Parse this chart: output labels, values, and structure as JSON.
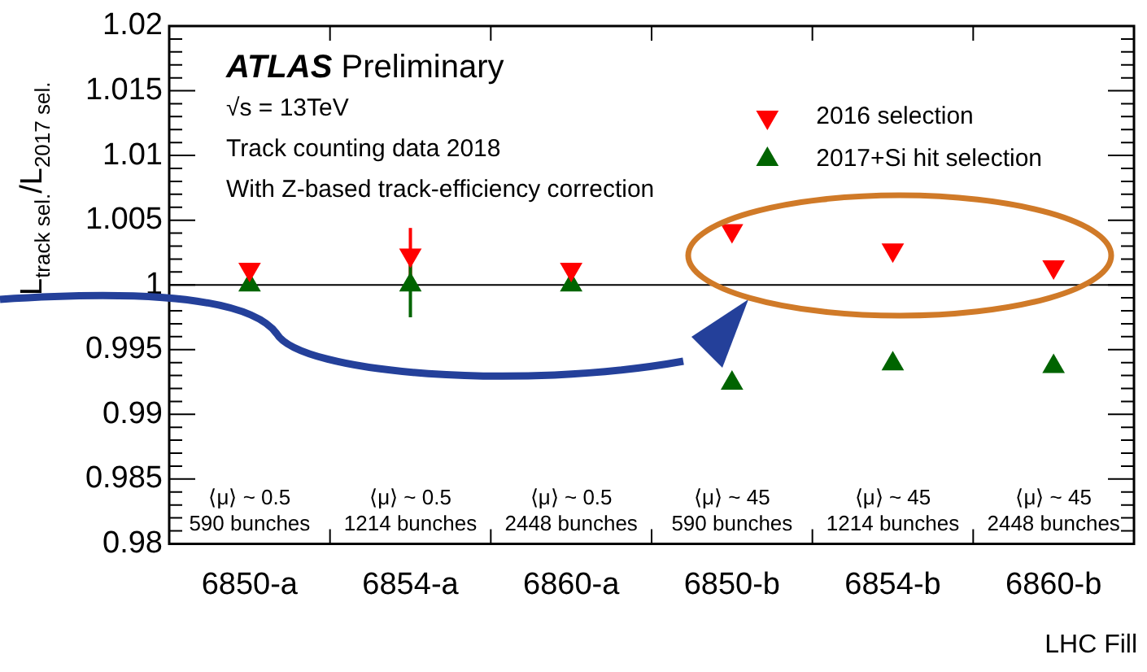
{
  "chart_data": {
    "type": "scatter",
    "xlabel": "LHC Fill",
    "ylabel": "L$_{track sel.}$/L$_{2017 sel.}$",
    "categories": [
      "6850-a",
      "6854-a",
      "6860-a",
      "6850-b",
      "6854-b",
      "6860-b"
    ],
    "series": [
      {
        "name": "2016 selection",
        "color": "#ff0000",
        "marker": "triangle-down",
        "values": [
          1.0012,
          1.0023,
          1.0012,
          1.0042,
          1.0027,
          1.0014
        ],
        "errors": [
          null,
          0.0021,
          null,
          null,
          null,
          null
        ]
      },
      {
        "name": "2017+Si hit selection",
        "color": "#006400",
        "marker": "triangle",
        "values": [
          1.0,
          1.0,
          1.0,
          0.9924,
          0.9939,
          0.9937
        ],
        "errors": [
          null,
          0.0025,
          null,
          null,
          null,
          null
        ]
      }
    ],
    "ylim": [
      0.98,
      1.02
    ],
    "yticks": [
      0.98,
      {
        "value": 0.981,
        "label": null
      },
      {
        "value": 0.982,
        "label": null
      },
      {
        "value": 0.983,
        "label": null
      },
      {
        "value": 0.984,
        "label": null
      },
      0.985,
      {
        "value": 0.986,
        "label": null
      },
      {
        "value": 0.987,
        "label": null
      },
      {
        "value": 0.988,
        "label": null
      },
      {
        "value": 0.989,
        "label": null
      },
      0.99,
      {
        "value": 0.991,
        "label": null
      },
      {
        "value": 0.992,
        "label": null
      },
      {
        "value": 0.993,
        "label": null
      },
      {
        "value": 0.994,
        "label": null
      },
      0.995,
      {
        "value": 0.996,
        "label": null
      },
      {
        "value": 0.997,
        "label": null
      },
      {
        "value": 0.998,
        "label": null
      },
      {
        "value": 0.999,
        "label": null
      },
      1,
      {
        "value": 1.001,
        "label": null
      },
      {
        "value": 1.002,
        "label": null
      },
      {
        "value": 1.003,
        "label": null
      },
      {
        "value": 1.004,
        "label": null
      },
      1.005,
      {
        "value": 1.006,
        "label": null
      },
      {
        "value": 1.007,
        "label": null
      },
      {
        "value": 1.008,
        "label": null
      },
      {
        "value": 1.009,
        "label": null
      },
      1.01,
      {
        "value": 1.011,
        "label": null
      },
      {
        "value": 1.012,
        "label": null
      },
      {
        "value": 1.013,
        "label": null
      },
      {
        "value": 1.014,
        "label": null
      },
      1.015,
      {
        "value": 1.016,
        "label": null
      },
      {
        "value": 1.017,
        "label": null
      },
      {
        "value": 1.018,
        "label": null
      },
      {
        "value": 1.019,
        "label": null
      },
      1.02
    ],
    "ref_lines": [
      {
        "axis": "y",
        "value": 1,
        "color": "#000000"
      }
    ],
    "annotations": [
      "ATLAS Preliminary",
      "√s = 13TeV",
      "Track counting data 2018",
      "With Z-based track-efficiency correction",
      "⟨μ⟩ ~ 0.5\n590 bunches",
      "⟨μ⟩ ~ 0.5\n1214 bunches",
      "⟨μ⟩ ~ 0.5\n2448 bunches",
      "⟨μ⟩ ~ 45\n590 bunches",
      "⟨μ⟩ ~ 45\n1214 bunches",
      "⟨μ⟩ ~ 45\n2448 bunches"
    ],
    "legend": "top right",
    "grid": false
  }
}
